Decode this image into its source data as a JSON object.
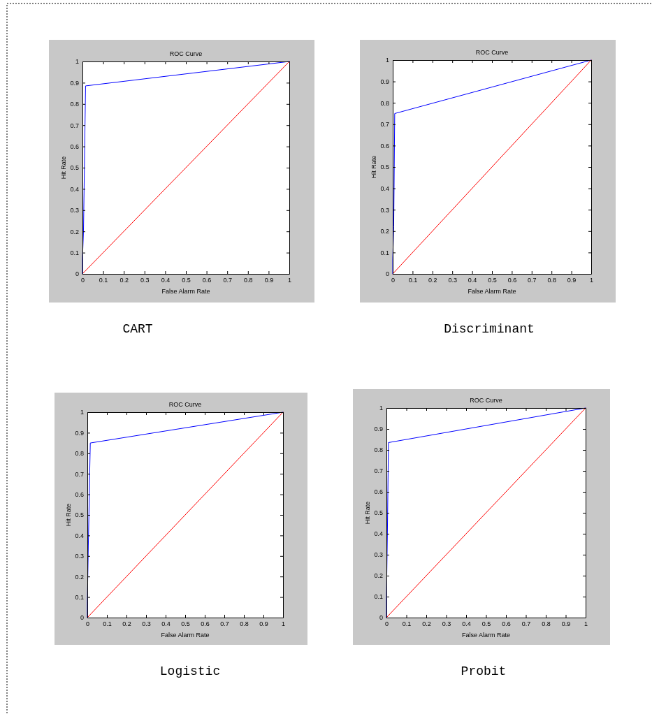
{
  "chart_data": [
    {
      "type": "line",
      "title": "ROC Curve",
      "xlabel": "False Alarm Rate",
      "ylabel": "Hit Rate",
      "xlim": [
        0,
        1
      ],
      "ylim": [
        0,
        1
      ],
      "xticks": [
        0,
        0.1,
        0.2,
        0.3,
        0.4,
        0.5,
        0.6,
        0.7,
        0.8,
        0.9,
        1
      ],
      "yticks": [
        0,
        0.1,
        0.2,
        0.3,
        0.4,
        0.5,
        0.6,
        0.7,
        0.8,
        0.9,
        1
      ],
      "annotations": [
        "CART"
      ],
      "series": [
        {
          "color": "#0000ff",
          "x": [
            0,
            0,
            0.005,
            0.015,
            1
          ],
          "values": [
            0,
            0.07,
            0.2,
            0.885,
            1
          ]
        },
        {
          "color": "#ff0000",
          "x": [
            0,
            1
          ],
          "values": [
            0,
            1
          ]
        }
      ]
    },
    {
      "type": "line",
      "title": "ROC Curve",
      "xlabel": "False Alarm Rate",
      "ylabel": "Hit Rate",
      "xlim": [
        0,
        1
      ],
      "ylim": [
        0,
        1
      ],
      "xticks": [
        0,
        0.1,
        0.2,
        0.3,
        0.4,
        0.5,
        0.6,
        0.7,
        0.8,
        0.9,
        1
      ],
      "yticks": [
        0,
        0.1,
        0.2,
        0.3,
        0.4,
        0.5,
        0.6,
        0.7,
        0.8,
        0.9,
        1
      ],
      "annotations": [
        "Discriminant"
      ],
      "series": [
        {
          "color": "#0000ff",
          "x": [
            0,
            0,
            0.005,
            0.01,
            1
          ],
          "values": [
            0,
            0.07,
            0.22,
            0.75,
            1
          ]
        },
        {
          "color": "#ff0000",
          "x": [
            0,
            1
          ],
          "values": [
            0,
            1
          ]
        }
      ]
    },
    {
      "type": "line",
      "title": "ROC Curve",
      "xlabel": "False Alarm Rate",
      "ylabel": "Hit Rate",
      "xlim": [
        0,
        1
      ],
      "ylim": [
        0,
        1
      ],
      "xticks": [
        0,
        0.1,
        0.2,
        0.3,
        0.4,
        0.5,
        0.6,
        0.7,
        0.8,
        0.9,
        1
      ],
      "yticks": [
        0,
        0.1,
        0.2,
        0.3,
        0.4,
        0.5,
        0.6,
        0.7,
        0.8,
        0.9,
        1
      ],
      "annotations": [
        "Logistic"
      ],
      "series": [
        {
          "color": "#0000ff",
          "x": [
            0,
            0,
            0.005,
            0.015,
            1
          ],
          "values": [
            0,
            0.07,
            0.35,
            0.85,
            1
          ]
        },
        {
          "color": "#ff0000",
          "x": [
            0,
            1
          ],
          "values": [
            0,
            1
          ]
        }
      ]
    },
    {
      "type": "line",
      "title": "ROC Curve",
      "xlabel": "False Alarm Rate",
      "ylabel": "Hit Rate",
      "xlim": [
        0,
        1
      ],
      "ylim": [
        0,
        1
      ],
      "xticks": [
        0,
        0.1,
        0.2,
        0.3,
        0.4,
        0.5,
        0.6,
        0.7,
        0.8,
        0.9,
        1
      ],
      "yticks": [
        0,
        0.1,
        0.2,
        0.3,
        0.4,
        0.5,
        0.6,
        0.7,
        0.8,
        0.9,
        1
      ],
      "annotations": [
        "Probit"
      ],
      "series": [
        {
          "color": "#0000ff",
          "x": [
            0,
            0,
            0.005,
            0.01,
            1
          ],
          "values": [
            0,
            0.08,
            0.42,
            0.835,
            1
          ]
        },
        {
          "color": "#ff0000",
          "x": [
            0,
            1
          ],
          "values": [
            0,
            1
          ]
        }
      ]
    }
  ]
}
